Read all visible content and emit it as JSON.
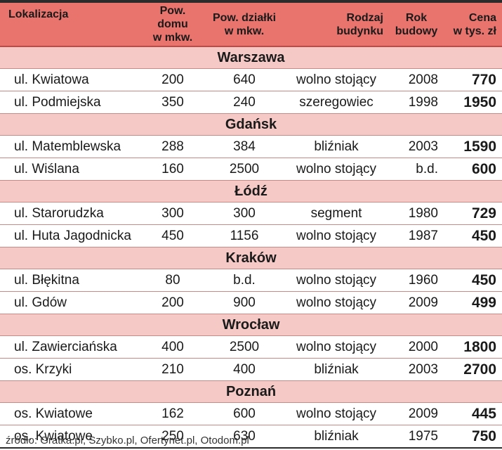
{
  "header": {
    "location": "Lokalizacja",
    "house_area": [
      "Pow. domu",
      "w mkw."
    ],
    "plot_area": [
      "Pow. działki",
      "w  mkw."
    ],
    "building_type": [
      "Rodzaj",
      "budynku"
    ],
    "year": [
      "Rok",
      "budowy"
    ],
    "price": [
      "Cena",
      "w tys. zł"
    ]
  },
  "sections": [
    {
      "city": "Warszawa",
      "rows": [
        {
          "loc": "ul. Kwiatowa",
          "house": "200",
          "plot": "640",
          "type": "wolno stojący",
          "year": "2008",
          "price": "770"
        },
        {
          "loc": "ul. Podmiejska",
          "house": "350",
          "plot": "240",
          "type": "szeregowiec",
          "year": "1998",
          "price": "1950"
        }
      ]
    },
    {
      "city": "Gdańsk",
      "rows": [
        {
          "loc": "ul. Matemblewska",
          "house": "288",
          "plot": "384",
          "type": "bliźniak",
          "year": "2003",
          "price": "1590"
        },
        {
          "loc": "ul. Wiślana",
          "house": "160",
          "plot": "2500",
          "type": "wolno stojący",
          "year": "b.d.",
          "price": "600"
        }
      ]
    },
    {
      "city": "Łódź",
      "rows": [
        {
          "loc": "ul. Starorudzka",
          "house": "300",
          "plot": "300",
          "type": "segment",
          "year": "1980",
          "price": "729"
        },
        {
          "loc": "ul. Huta Jagodnicka",
          "house": "450",
          "plot": "1156",
          "type": "wolno stojący",
          "year": "1987",
          "price": "450"
        }
      ]
    },
    {
      "city": "Kraków",
      "rows": [
        {
          "loc": "ul. Błękitna",
          "house": "80",
          "plot": "b.d.",
          "type": "wolno stojący",
          "year": "1960",
          "price": "450"
        },
        {
          "loc": "ul. Gdów",
          "house": "200",
          "plot": "900",
          "type": "wolno stojący",
          "year": "2009",
          "price": "499"
        }
      ]
    },
    {
      "city": "Wrocław",
      "rows": [
        {
          "loc": "ul. Zawierciańska",
          "house": "400",
          "plot": "2500",
          "type": "wolno stojący",
          "year": "2000",
          "price": "1800"
        },
        {
          "loc": "os. Krzyki",
          "house": "210",
          "plot": "400",
          "type": "bliźniak",
          "year": "2003",
          "price": "2700"
        }
      ]
    },
    {
      "city": "Poznań",
      "rows": [
        {
          "loc": "os. Kwiatowe",
          "house": "162",
          "plot": "600",
          "type": "wolno stojący",
          "year": "2009",
          "price": "445"
        },
        {
          "loc": "os. Kwiatowe",
          "house": "250",
          "plot": "630",
          "type": "bliźniak",
          "year": "1975",
          "price": "750"
        }
      ]
    }
  ],
  "source": "źródło: Gratka.pl, Szybko.pl, Ofertynet.pl, Otodom.pl",
  "colors": {
    "header_bg": "#e8746d",
    "city_bg": "#f5c9c5",
    "rule": "#2b2b2b"
  }
}
